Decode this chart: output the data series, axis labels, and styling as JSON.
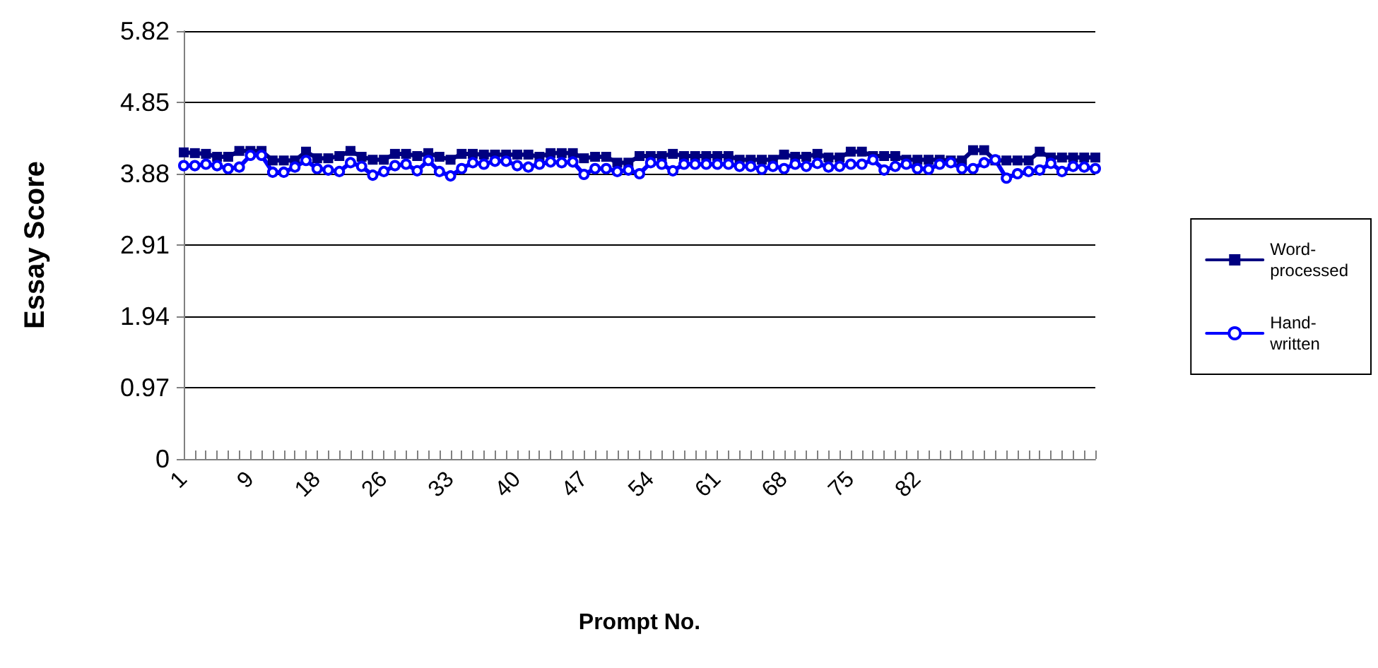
{
  "chart_data": {
    "type": "line",
    "xlabel": "Prompt No.",
    "ylabel": "Essay Score",
    "categories": [
      "1",
      null,
      null,
      null,
      null,
      null,
      "9",
      null,
      null,
      null,
      null,
      null,
      "18",
      null,
      null,
      null,
      null,
      null,
      "26",
      null,
      null,
      null,
      null,
      null,
      "33",
      null,
      null,
      null,
      null,
      null,
      "40",
      null,
      null,
      null,
      null,
      null,
      "47",
      null,
      null,
      null,
      null,
      null,
      "54",
      null,
      null,
      null,
      null,
      null,
      "61",
      null,
      null,
      null,
      null,
      null,
      "68",
      null,
      null,
      null,
      null,
      null,
      "75",
      null,
      null,
      null,
      null,
      null,
      "82",
      null,
      null,
      null,
      null,
      null,
      null,
      null,
      null,
      null,
      null,
      null,
      null,
      null,
      null,
      null,
      null
    ],
    "series": [
      {
        "name": "Word-processed",
        "color": "#000080",
        "marker": "square",
        "values": [
          4.17,
          4.16,
          4.15,
          4.11,
          4.11,
          4.19,
          4.19,
          4.19,
          4.06,
          4.06,
          4.06,
          4.18,
          4.09,
          4.09,
          4.12,
          4.19,
          4.11,
          4.07,
          4.07,
          4.15,
          4.15,
          4.12,
          4.16,
          4.11,
          4.07,
          4.15,
          4.15,
          4.14,
          4.14,
          4.14,
          4.14,
          4.14,
          4.11,
          4.16,
          4.16,
          4.16,
          4.09,
          4.11,
          4.11,
          4.03,
          4.03,
          4.12,
          4.12,
          4.12,
          4.15,
          4.12,
          4.12,
          4.12,
          4.12,
          4.12,
          4.07,
          4.07,
          4.07,
          4.07,
          4.14,
          4.11,
          4.11,
          4.15,
          4.1,
          4.1,
          4.18,
          4.18,
          4.12,
          4.12,
          4.12,
          4.07,
          4.07,
          4.07,
          4.07,
          4.06,
          4.06,
          4.2,
          4.2,
          4.06,
          4.06,
          4.06,
          4.06,
          4.18,
          4.1,
          4.1,
          4.1,
          4.1,
          4.1
        ]
      },
      {
        "name": "Hand-written",
        "color": "#0000ff",
        "marker": "circle",
        "values": [
          3.99,
          3.99,
          4.01,
          3.99,
          3.95,
          3.97,
          4.13,
          4.13,
          3.9,
          3.9,
          3.97,
          4.06,
          3.95,
          3.93,
          3.91,
          4.03,
          3.98,
          3.86,
          3.91,
          3.99,
          4.01,
          3.92,
          4.06,
          3.91,
          3.85,
          3.95,
          4.03,
          4.01,
          4.05,
          4.05,
          3.99,
          3.97,
          4.01,
          4.04,
          4.03,
          4.04,
          3.87,
          3.95,
          3.95,
          3.91,
          3.93,
          3.88,
          4.03,
          4.01,
          3.92,
          4.01,
          4.01,
          4.01,
          4.01,
          4.01,
          3.98,
          3.98,
          3.94,
          3.98,
          3.95,
          4.01,
          3.98,
          4.02,
          3.97,
          3.98,
          4.01,
          4.01,
          4.07,
          3.93,
          3.98,
          4.01,
          3.95,
          3.94,
          4.01,
          4.03,
          3.95,
          3.95,
          4.03,
          4.07,
          3.82,
          3.88,
          3.91,
          3.93,
          4.02,
          3.91,
          3.98,
          3.97,
          3.95
        ]
      }
    ],
    "ylim": [
      0,
      5.82
    ],
    "yticks": [
      0,
      0.97,
      1.94,
      2.91,
      3.88,
      4.85,
      5.82
    ],
    "grid": "y",
    "legend": "right"
  }
}
